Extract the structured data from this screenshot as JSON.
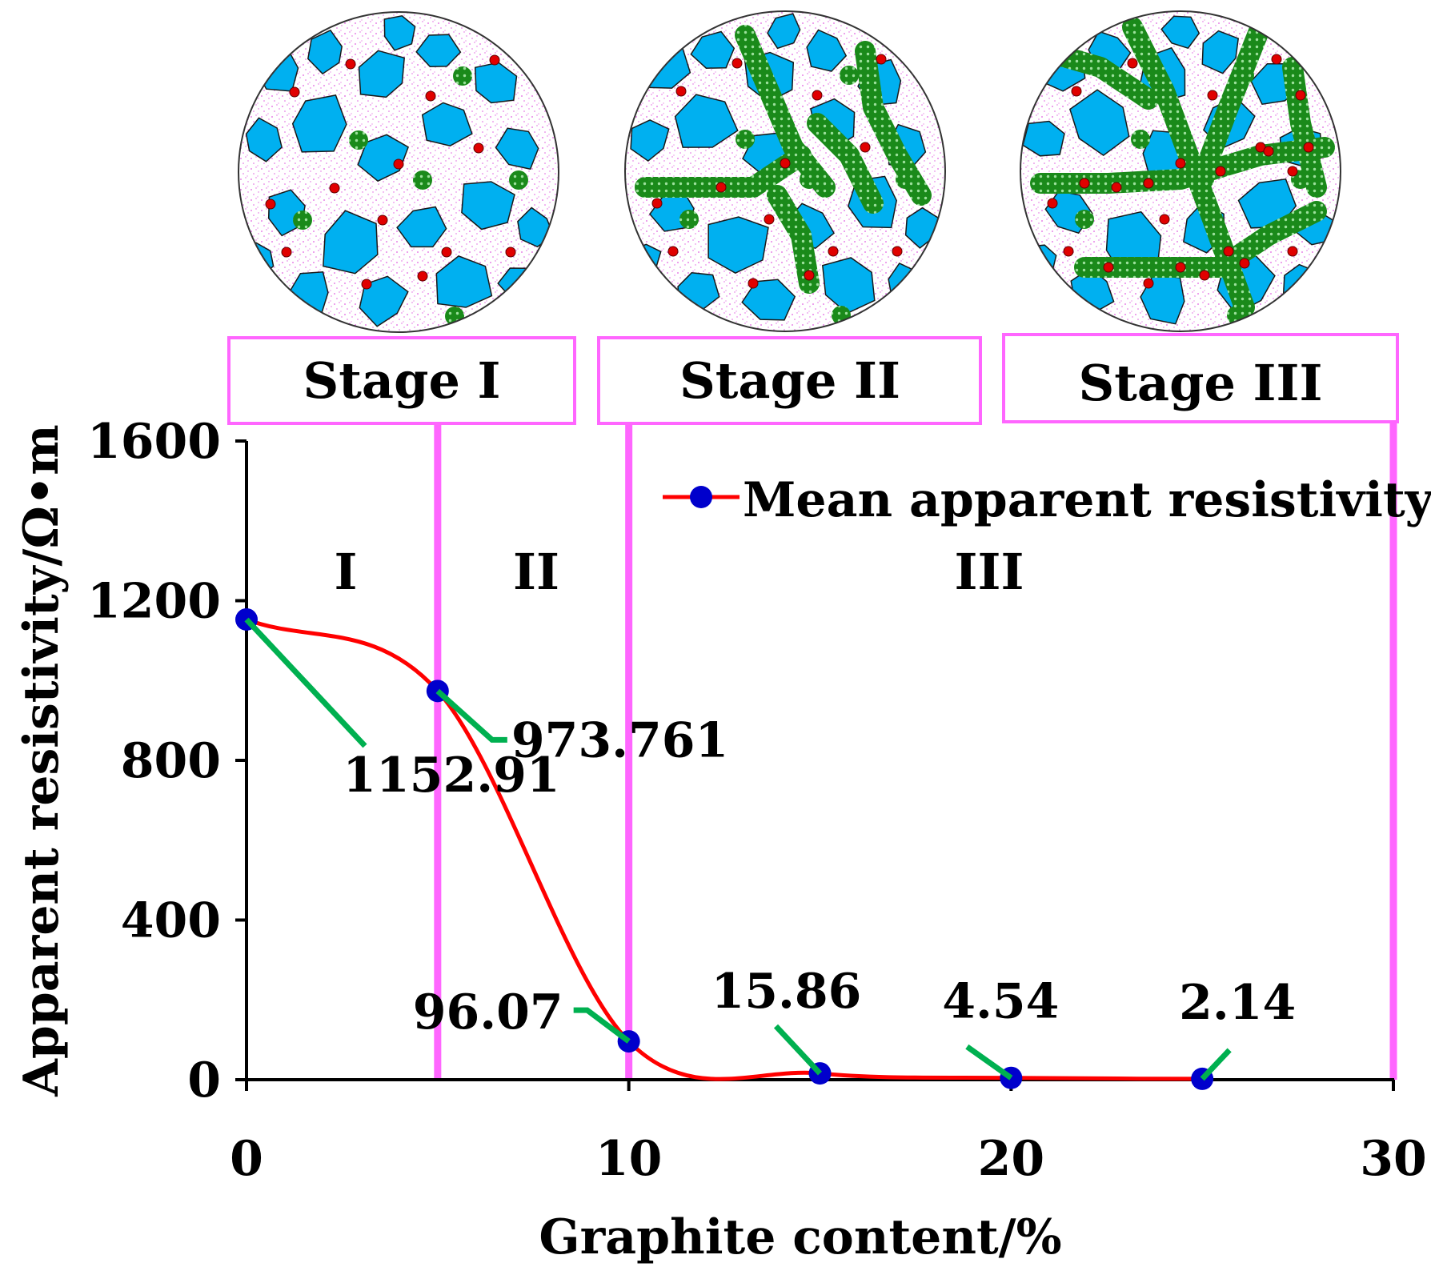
{
  "stages": [
    "Stage I",
    "Stage II",
    "Stage III"
  ],
  "regions": [
    "I",
    "II",
    "III"
  ],
  "chart_data": {
    "type": "line",
    "title": "",
    "xlabel": "Graphite content/%",
    "ylabel": "Apparent resistivity/Ω•m",
    "xlim": [
      0,
      30
    ],
    "ylim": [
      0,
      1600
    ],
    "x_ticks": [
      0,
      10,
      20,
      30
    ],
    "y_ticks": [
      0,
      400,
      800,
      1200,
      1600
    ],
    "grid": false,
    "legend_position": "top-right",
    "stage_boundaries": [
      5,
      10,
      30
    ],
    "series": [
      {
        "name": "Mean apparent resistivity",
        "line_color": "#ff0000",
        "marker_color": "#0000cc",
        "x": [
          0,
          5,
          10,
          15,
          20,
          25
        ],
        "values": [
          1152.91,
          973.761,
          96.07,
          15.86,
          4.54,
          2.14
        ],
        "labels": [
          "1152.91",
          "973.761",
          "96.07",
          "15.86",
          "4.54",
          "2.14"
        ]
      }
    ],
    "colors": {
      "stage_line": "#ff66ff",
      "leader_line": "#00b050",
      "aggregate": "#00b0f0",
      "graphite": "#1a8a1a",
      "conductive_particle": "#e00000"
    }
  }
}
